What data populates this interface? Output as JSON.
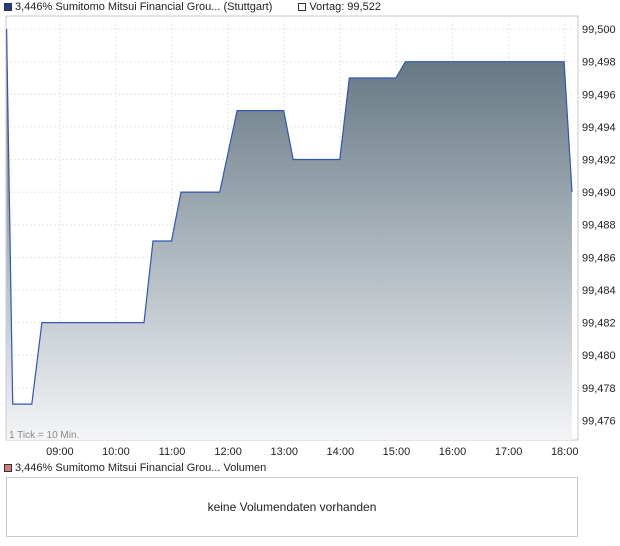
{
  "legend_top": {
    "series_label": "3,446% Sumitomo Mitsui Financial Grou... (Stuttgart)",
    "series_color": "#1f3f8f",
    "prev_label": "Vortag: 99,522",
    "prev_color": "#ffffff"
  },
  "tick_note": "1 Tick = 10 Min.",
  "legend_bottom": {
    "label": "3,446% Sumitomo Mitsui Financial Grou... Volumen",
    "color": "#d97a7a"
  },
  "volume_message": "keine Volumendaten vorhanden",
  "chart_data": {
    "type": "area",
    "title": "",
    "xlabel": "",
    "ylabel": "",
    "x_ticks": [
      "09:00",
      "10:00",
      "11:00",
      "12:00",
      "13:00",
      "14:00",
      "15:00",
      "16:00",
      "17:00",
      "18:00"
    ],
    "y_ticks": [
      "99,476",
      "99,478",
      "99,480",
      "99,482",
      "99,484",
      "99,486",
      "99,488",
      "99,490",
      "99,492",
      "99,494",
      "99,496",
      "99,498",
      "99,500"
    ],
    "ylim": [
      99.4748,
      99.5008
    ],
    "xlim_hours": [
      8.04,
      18.13
    ],
    "grid": true,
    "line_color": "#2f57b3",
    "fill_top_color": "#5a6e7b",
    "fill_bottom_color": "#f4f5f7",
    "series": [
      {
        "points": [
          [
            8.05,
            99.5
          ],
          [
            8.16,
            99.477
          ],
          [
            8.5,
            99.477
          ],
          [
            8.68,
            99.482
          ],
          [
            10.5,
            99.482
          ],
          [
            10.66,
            99.487
          ],
          [
            10.99,
            99.487
          ],
          [
            11.16,
            99.49
          ],
          [
            11.85,
            99.49
          ],
          [
            12.16,
            99.495
          ],
          [
            12.99,
            99.495
          ],
          [
            13.16,
            99.492
          ],
          [
            13.99,
            99.492
          ],
          [
            14.16,
            99.497
          ],
          [
            14.99,
            99.497
          ],
          [
            15.16,
            99.498
          ],
          [
            17.99,
            99.498
          ],
          [
            18.13,
            99.49
          ]
        ]
      }
    ]
  }
}
